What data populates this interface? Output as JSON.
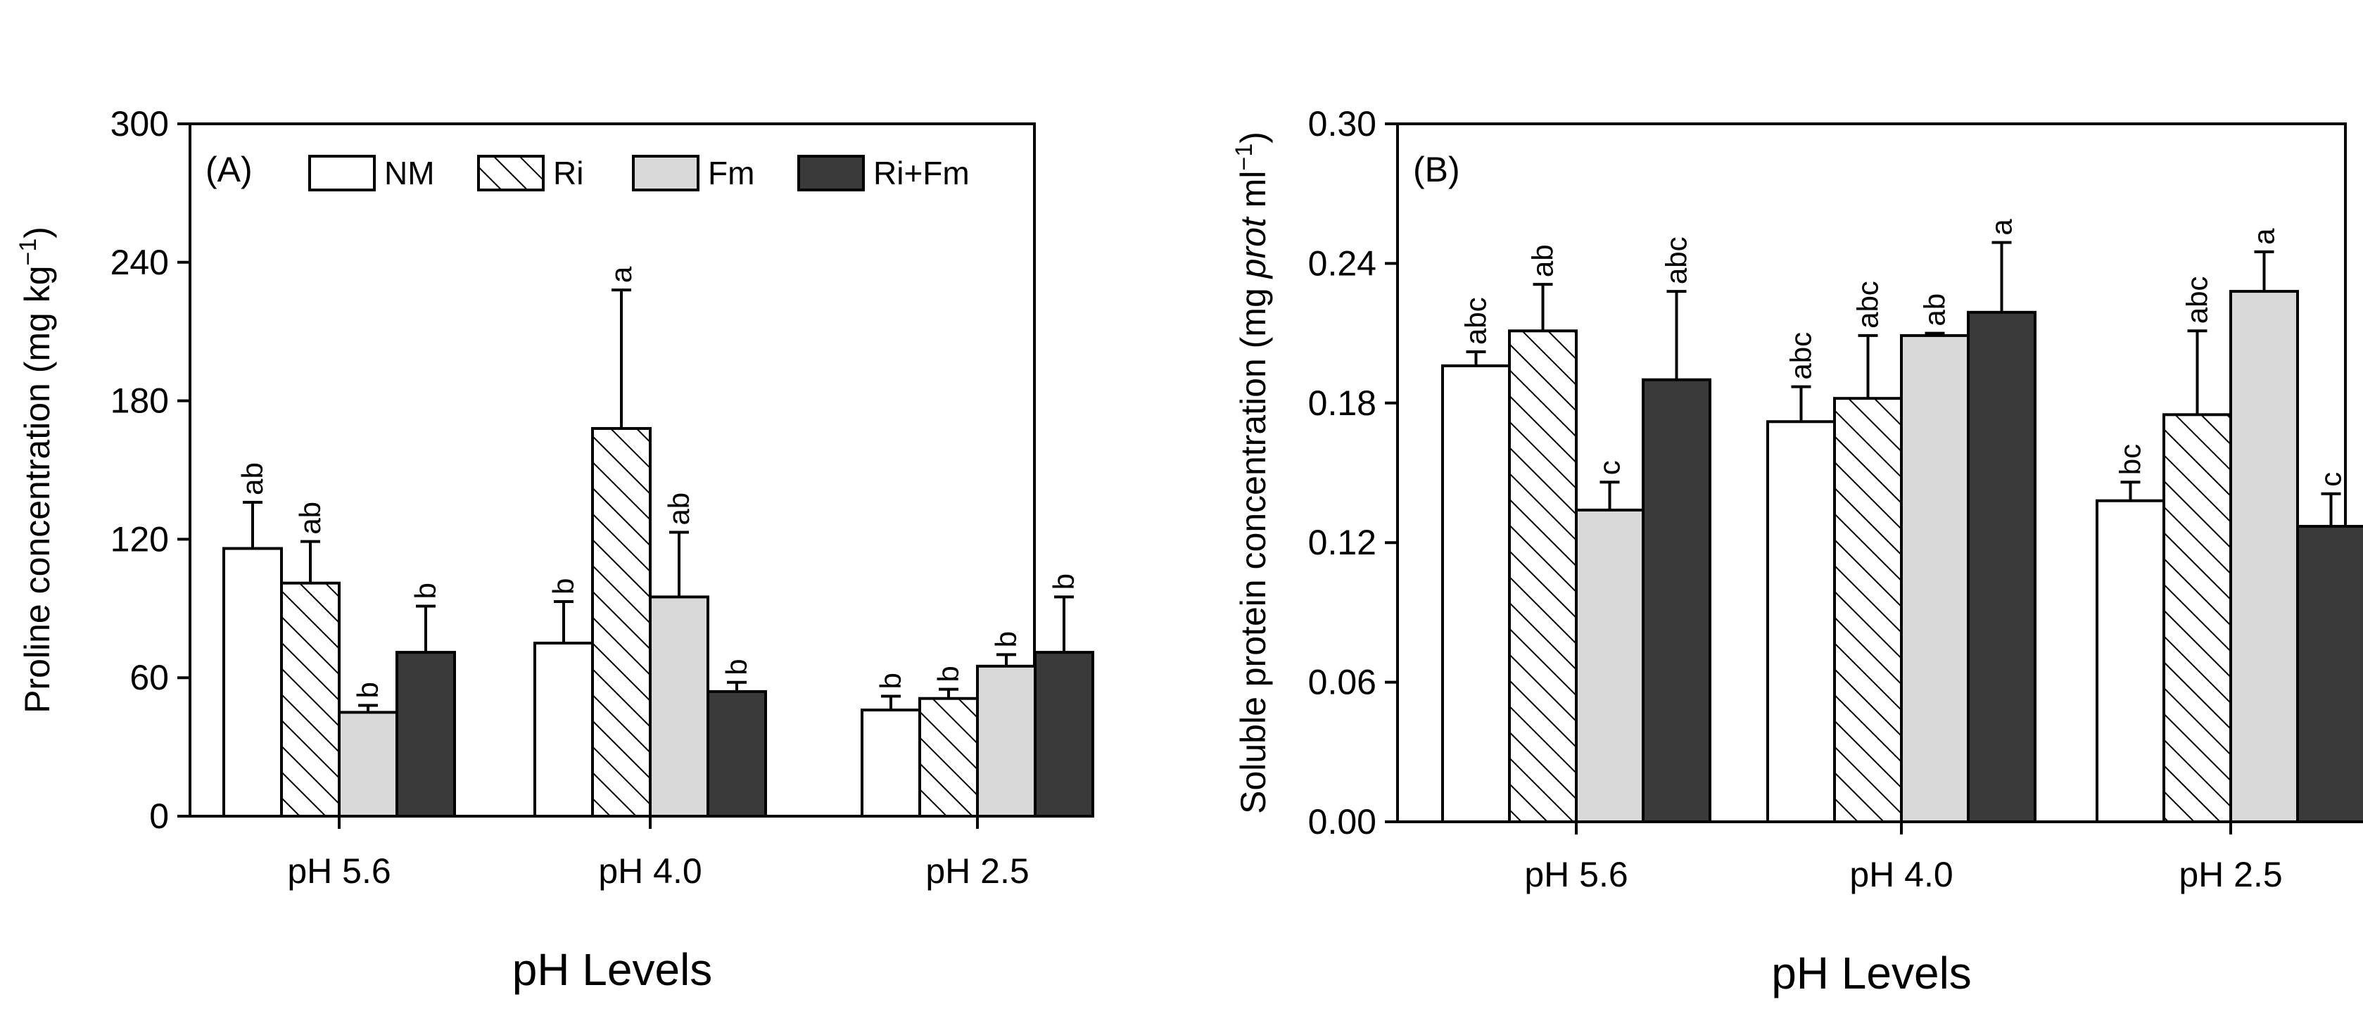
{
  "chart_data": [
    {
      "type": "bar",
      "panel_label": "(A)",
      "categories": [
        "pH 5.6",
        "pH 4.0",
        "pH 2.5"
      ],
      "xlabel": "pH Levels",
      "ylabel_prefix": "Proline concentration (mg kg",
      "ylabel_sup": "−1",
      "ylabel_suffix": ")",
      "ylim": [
        0,
        300
      ],
      "yticks": [
        0,
        60,
        120,
        180,
        240,
        300
      ],
      "ytick_labels": [
        "0",
        "60",
        "120",
        "180",
        "240",
        "300"
      ],
      "legend_position": "top",
      "series": [
        {
          "name": "NM",
          "values": [
            116,
            75,
            46
          ],
          "errors": [
            20,
            18,
            6
          ],
          "letters": [
            "ab",
            "b",
            "b"
          ]
        },
        {
          "name": "Ri",
          "values": [
            101,
            168,
            51
          ],
          "errors": [
            18,
            60,
            4
          ],
          "letters": [
            "ab",
            "a",
            "b"
          ]
        },
        {
          "name": "Fm",
          "values": [
            45,
            95,
            65
          ],
          "errors": [
            3,
            28,
            5
          ],
          "letters": [
            "b",
            "ab",
            "b"
          ]
        },
        {
          "name": "Ri+Fm",
          "values": [
            71,
            54,
            71
          ],
          "errors": [
            20,
            4,
            24
          ],
          "letters": [
            "b",
            "b",
            "b"
          ]
        }
      ]
    },
    {
      "type": "bar",
      "panel_label": "(B)",
      "categories": [
        "pH 5.6",
        "pH 4.0",
        "pH 2.5"
      ],
      "xlabel": "pH Levels",
      "ylabel_prefix": "Soluble protein concentration (mg ",
      "ylabel_italic": "prot",
      "ylabel_mid": " ml",
      "ylabel_sup": "−1",
      "ylabel_suffix": ")",
      "ylim": [
        0,
        0.3
      ],
      "yticks": [
        0,
        0.06,
        0.12,
        0.18,
        0.24,
        0.3
      ],
      "ytick_labels": [
        "0.00",
        "0.06",
        "0.12",
        "0.18",
        "0.24",
        "0.30"
      ],
      "series": [
        {
          "name": "NM",
          "values": [
            0.196,
            0.172,
            0.138
          ],
          "errors": [
            0.006,
            0.015,
            0.008
          ],
          "letters": [
            "abc",
            "abc",
            "bc"
          ]
        },
        {
          "name": "Ri",
          "values": [
            0.211,
            0.182,
            0.175
          ],
          "errors": [
            0.02,
            0.027,
            0.036
          ],
          "letters": [
            "ab",
            "abc",
            "abc"
          ]
        },
        {
          "name": "Fm",
          "values": [
            0.134,
            0.209,
            0.228
          ],
          "errors": [
            0.012,
            0.001,
            0.017
          ],
          "letters": [
            "c",
            "ab",
            "a"
          ]
        },
        {
          "name": "Ri+Fm",
          "values": [
            0.19,
            0.219,
            0.127
          ],
          "errors": [
            0.038,
            0.03,
            0.014
          ],
          "letters": [
            "abc",
            "a",
            "c"
          ]
        }
      ]
    }
  ],
  "series_colors": [
    "#ffffff",
    "#ffffff",
    "#d9d9d9",
    "#3a3a3a"
  ]
}
